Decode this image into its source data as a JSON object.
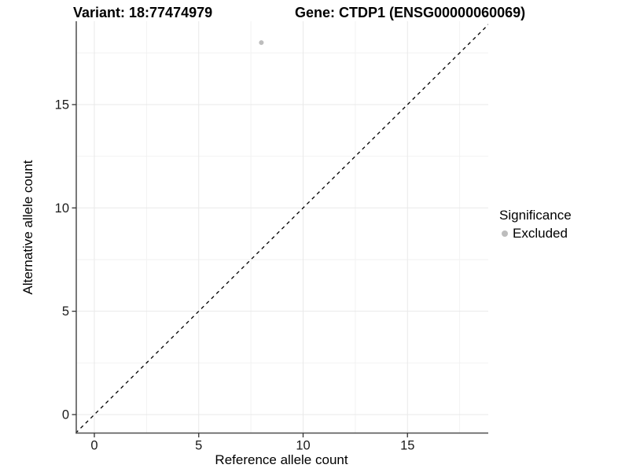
{
  "chart_data": {
    "type": "scatter",
    "titles": {
      "left": "Variant: 18:77474979",
      "right": "Gene: CTDP1 (ENSG00000060069)"
    },
    "xlabel": "Reference allele count",
    "ylabel": "Alternative allele count",
    "xlim": [
      -0.9,
      18.9
    ],
    "ylim": [
      -0.9,
      19.0
    ],
    "xticks": [
      0,
      5,
      10,
      15
    ],
    "yticks": [
      0,
      5,
      10,
      15
    ],
    "minor_gridlines": [
      2.5,
      7.5,
      12.5,
      17.5
    ],
    "grid": true,
    "points": [
      {
        "x": 8,
        "y": 18,
        "significance": "Excluded"
      }
    ],
    "identity_line": {
      "style": "dashed",
      "equation": "y = x"
    },
    "legend": {
      "title": "Significance",
      "position": "right",
      "items": [
        {
          "label": "Excluded",
          "color": "#bdbdbd"
        }
      ]
    },
    "colors": {
      "background": "#ffffff",
      "point": "#bdbdbd",
      "axis_line": "#4d4d4d",
      "tick_mark": "#333333",
      "tick_text": "#1a1a1a",
      "grid_major": "#e9e9e9",
      "grid_minor": "#f2f2f2",
      "identity_line": "#000000"
    }
  }
}
